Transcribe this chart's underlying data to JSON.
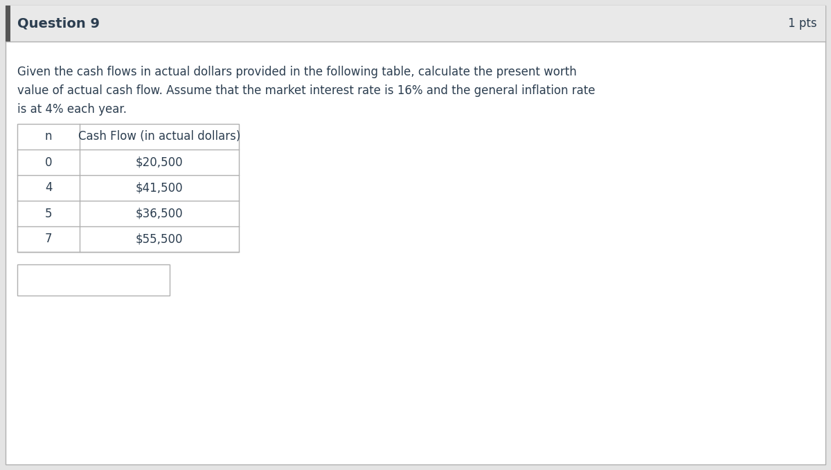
{
  "title": "Question 9",
  "pts": "1 pts",
  "description_line1": "Given the cash flows in actual dollars provided in the following table, calculate the present worth",
  "description_line2": "value of actual cash flow. Assume that the market interest rate is 16% and the general inflation rate",
  "description_line3": "is at 4% each year.",
  "table_headers": [
    "n",
    "Cash Flow (in actual dollars)"
  ],
  "table_rows": [
    [
      "0",
      "$20,500"
    ],
    [
      "4",
      "$41,500"
    ],
    [
      "5",
      "$36,500"
    ],
    [
      "7",
      "$55,500"
    ]
  ],
  "header_bg": "#e9e9e9",
  "outer_bg": "#e4e4e4",
  "inner_bg": "#ffffff",
  "border_color": "#b0b0b0",
  "title_color": "#2c3e50",
  "text_color": "#2c3e50",
  "pts_color": "#2c3e50",
  "table_text_color": "#2c3e50",
  "accent_color": "#555555",
  "title_fontsize": 14,
  "pts_fontsize": 12,
  "body_fontsize": 12,
  "table_fontsize": 12
}
